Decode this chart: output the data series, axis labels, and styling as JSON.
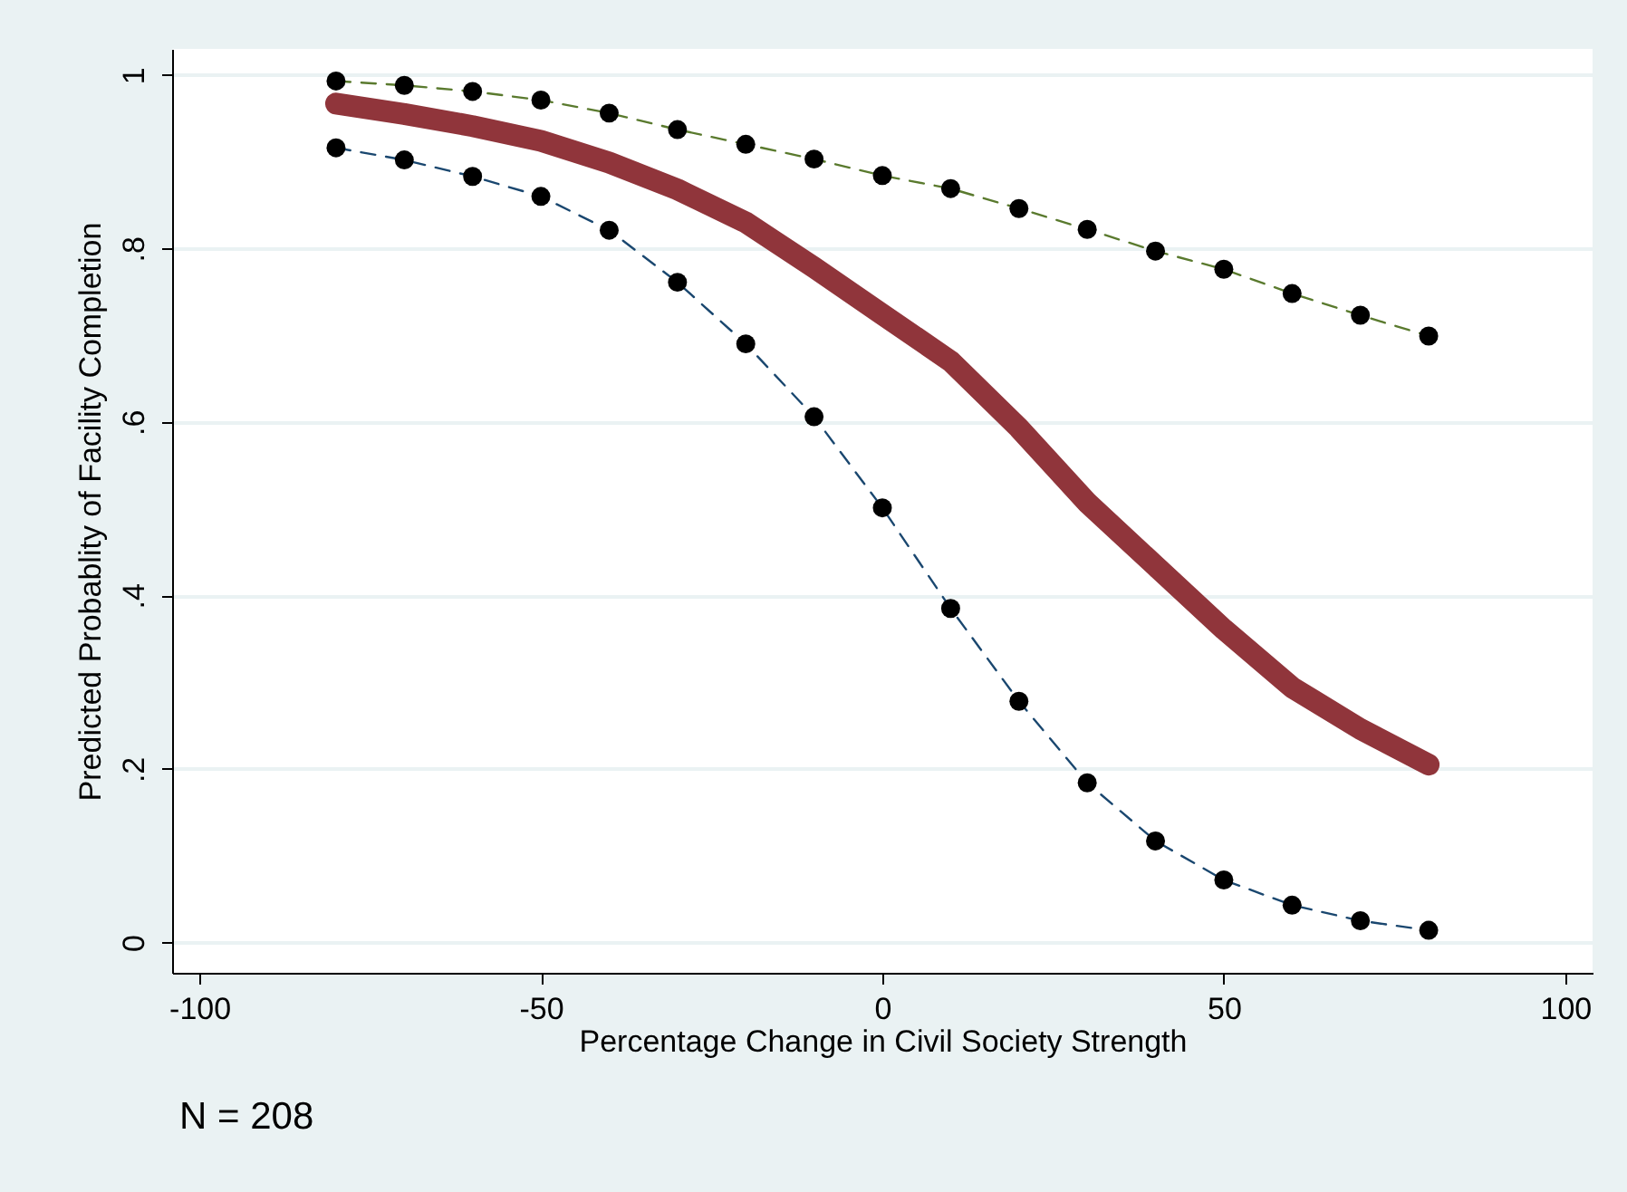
{
  "chart_data": {
    "type": "line",
    "xlabel": "Percentage Change in Civil Society Strength",
    "ylabel": "Predicted Probablity of Facility Completion",
    "annotations": [
      "N = 208"
    ],
    "x": [
      -80,
      -70,
      -60,
      -50,
      -40,
      -30,
      -20,
      -10,
      0,
      10,
      20,
      30,
      40,
      50,
      60,
      70,
      80
    ],
    "series": [
      {
        "color": "#5a7a2e",
        "marker": "circle",
        "line_style": "dashed",
        "values": [
          0.993,
          0.988,
          0.981,
          0.971,
          0.956,
          0.937,
          0.92,
          0.903,
          0.884,
          0.869,
          0.846,
          0.822,
          0.797,
          0.776,
          0.748,
          0.723,
          0.699
        ]
      },
      {
        "color": "#1a476f",
        "marker": "circle",
        "line_style": "dashed",
        "values": [
          0.916,
          0.902,
          0.883,
          0.86,
          0.821,
          0.761,
          0.69,
          0.606,
          0.501,
          0.385,
          0.278,
          0.184,
          0.117,
          0.072,
          0.043,
          0.025,
          0.014
        ]
      },
      {
        "color": "#90353b",
        "marker": "none",
        "line_style": "solid",
        "values": [
          0.967,
          0.955,
          0.941,
          0.924,
          0.899,
          0.868,
          0.83,
          0.778,
          0.724,
          0.67,
          0.593,
          0.507,
          0.434,
          0.361,
          0.294,
          0.246,
          0.205
        ]
      }
    ],
    "xlim": [
      -104,
      104
    ],
    "xticks": [
      -100,
      -50,
      0,
      50,
      100
    ],
    "ylim": [
      -0.035,
      1.03
    ],
    "yticks": [
      {
        "value": 0,
        "label": "0"
      },
      {
        "value": 0.2,
        "label": ".2"
      },
      {
        "value": 0.4,
        "label": ".4"
      },
      {
        "value": 0.6,
        "label": ".6"
      },
      {
        "value": 0.8,
        "label": ".8"
      },
      {
        "value": 1,
        "label": "1"
      }
    ],
    "grid": "y"
  }
}
